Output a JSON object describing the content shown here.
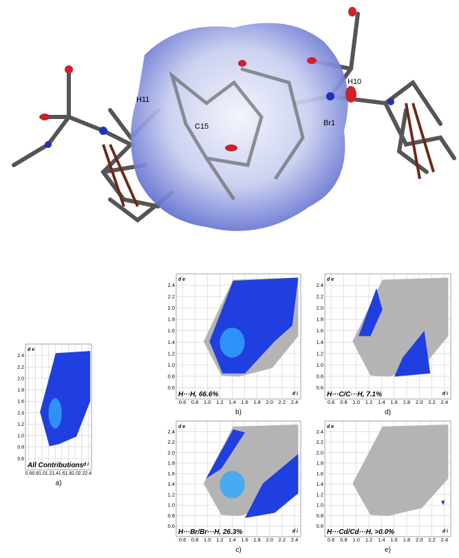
{
  "molecule": {
    "labels": [
      "H11",
      "C15",
      "H10",
      "Br1"
    ]
  },
  "panels": [
    {
      "label": "All Contributions",
      "caption": "a)"
    },
    {
      "label": "H···H, 66.6%",
      "caption": "b)"
    },
    {
      "label": "H···Br/Br···H, 26.3%",
      "caption": "c)"
    },
    {
      "label": "H···C/C···H, 7.1%",
      "caption": "d)"
    },
    {
      "label": "H···Cd/Cd···H, >0.0%",
      "caption": "e)"
    }
  ],
  "axes": {
    "y_label": "d e",
    "x_label": "d i",
    "ticks": [
      "0.6",
      "0.8",
      "1.0",
      "1.2",
      "1.4",
      "1.6",
      "1.8",
      "2.0",
      "2.2",
      "2.4"
    ]
  }
}
